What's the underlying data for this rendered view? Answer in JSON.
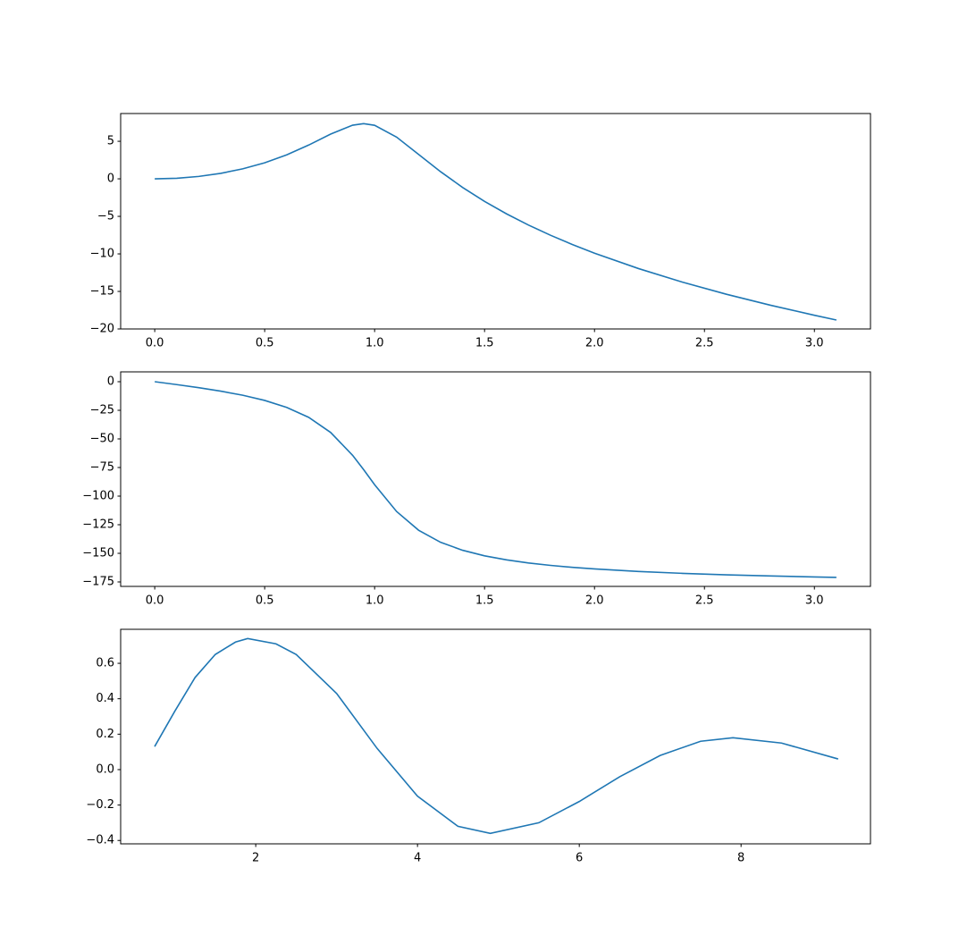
{
  "chart_data": [
    {
      "type": "line",
      "color": "#1f77b4",
      "x": [
        0,
        0.1,
        0.2,
        0.3,
        0.4,
        0.5,
        0.6,
        0.7,
        0.8,
        0.9,
        0.95,
        1.0,
        1.1,
        1.2,
        1.3,
        1.4,
        1.5,
        1.6,
        1.7,
        1.8,
        1.9,
        2.0,
        2.2,
        2.4,
        2.6,
        2.8,
        3.0,
        3.1
      ],
      "values": [
        0,
        0.079,
        0.318,
        0.729,
        1.328,
        2.14,
        3.194,
        4.498,
        5.96,
        7.147,
        7.347,
        7.131,
        5.553,
        3.257,
        0.951,
        -1.143,
        -3.006,
        -4.667,
        -6.161,
        -7.517,
        -8.757,
        -9.901,
        -11.954,
        -13.761,
        -15.377,
        -16.84,
        -18.178,
        -18.808
      ],
      "xlim": [
        -0.155,
        3.255
      ],
      "ylim": [
        -20.0,
        8.7
      ],
      "xticks": [
        {
          "value": 0,
          "label": "0.0"
        },
        {
          "value": 0.5,
          "label": "0.5"
        },
        {
          "value": 1,
          "label": "1.0"
        },
        {
          "value": 1.5,
          "label": "1.5"
        },
        {
          "value": 2,
          "label": "2.0"
        },
        {
          "value": 2.5,
          "label": "2.5"
        },
        {
          "value": 3,
          "label": "3.0"
        }
      ],
      "yticks": [
        {
          "value": -20,
          "label": "−20"
        },
        {
          "value": -15,
          "label": "−15"
        },
        {
          "value": -10,
          "label": "−10"
        },
        {
          "value": -5,
          "label": "−5"
        },
        0,
        5
      ]
    },
    {
      "type": "line",
      "color": "#1f77b4",
      "x": [
        0,
        0.1,
        0.2,
        0.3,
        0.4,
        0.5,
        0.6,
        0.7,
        0.8,
        0.9,
        0.95,
        1.0,
        1.1,
        1.2,
        1.3,
        1.4,
        1.5,
        1.6,
        1.7,
        1.8,
        1.9,
        2.0,
        2.2,
        2.4,
        2.6,
        2.8,
        3.0,
        3.1
      ],
      "values": [
        0,
        -2.54,
        -5.24,
        -8.25,
        -11.83,
        -16.35,
        -22.42,
        -31.13,
        -44.36,
        -64.37,
        -76.87,
        -90,
        -113.46,
        -129.81,
        -140.34,
        -147.32,
        -152.17,
        -155.71,
        -158.41,
        -160.53,
        -162.24,
        -163.65,
        -165.85,
        -167.49,
        -168.77,
        -169.79,
        -170.63,
        -171.0
      ],
      "xlim": [
        -0.155,
        3.255
      ],
      "ylim": [
        -178.9,
        8.6
      ],
      "xticks": [
        {
          "value": 0,
          "label": "0.0"
        },
        {
          "value": 0.5,
          "label": "0.5"
        },
        {
          "value": 1,
          "label": "1.0"
        },
        {
          "value": 1.5,
          "label": "1.5"
        },
        {
          "value": 2,
          "label": "2.0"
        },
        {
          "value": 2.5,
          "label": "2.5"
        },
        {
          "value": 3,
          "label": "3.0"
        }
      ],
      "yticks": [
        {
          "value": -175,
          "label": "−175"
        },
        {
          "value": -150,
          "label": "−150"
        },
        {
          "value": -125,
          "label": "−125"
        },
        {
          "value": -100,
          "label": "−100"
        },
        {
          "value": -75,
          "label": "−75"
        },
        {
          "value": -50,
          "label": "−50"
        },
        {
          "value": -25,
          "label": "−25"
        },
        0
      ]
    },
    {
      "type": "line",
      "color": "#1f77b4",
      "x": [
        0.75,
        1.0,
        1.25,
        1.5,
        1.75,
        1.9,
        2.25,
        2.5,
        3.0,
        3.5,
        4.0,
        4.5,
        4.9,
        5.5,
        6.0,
        6.5,
        7.0,
        7.5,
        7.9,
        8.5,
        9.2
      ],
      "values": [
        0.13,
        0.33,
        0.52,
        0.65,
        0.72,
        0.74,
        0.71,
        0.65,
        0.43,
        0.12,
        -0.15,
        -0.32,
        -0.36,
        -0.3,
        -0.18,
        -0.04,
        0.08,
        0.16,
        0.18,
        0.15,
        0.06
      ],
      "xlim": [
        0.33,
        9.6
      ],
      "ylim": [
        -0.419,
        0.792
      ],
      "xticks": [
        2,
        4,
        6,
        8
      ],
      "yticks": [
        {
          "value": -0.4,
          "label": "−0.4"
        },
        {
          "value": -0.2,
          "label": "−0.2"
        },
        {
          "value": 0,
          "label": "0.0"
        },
        {
          "value": 0.2,
          "label": "0.2"
        },
        {
          "value": 0.4,
          "label": "0.4"
        },
        {
          "value": 0.6,
          "label": "0.6"
        }
      ]
    }
  ]
}
